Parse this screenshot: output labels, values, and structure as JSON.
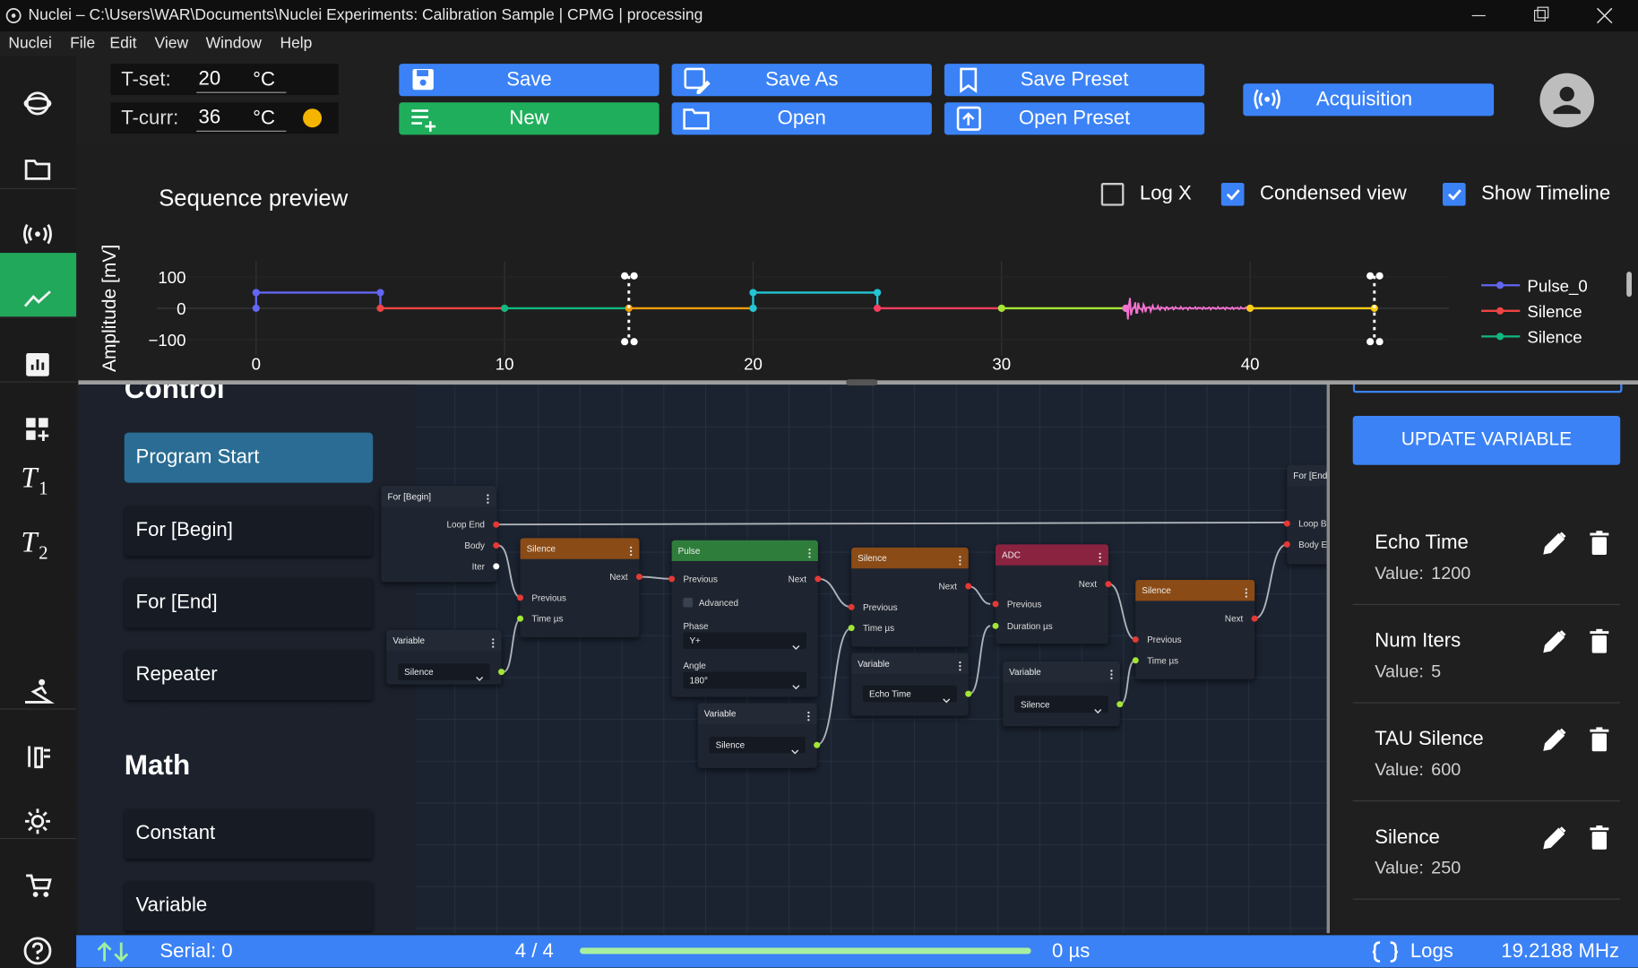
{
  "title_bar": {
    "title": "Nuclei – C:\\Users\\WAR\\Documents\\Nuclei Experiments: Calibration Sample | CPMG | processing"
  },
  "menu": [
    "Nuclei",
    "File",
    "Edit",
    "View",
    "Window",
    "Help"
  ],
  "sidebar_labels": [
    {
      "symbol": "T",
      "index": "1"
    },
    {
      "symbol": "T",
      "index": "2"
    }
  ],
  "temperature": {
    "set_label": "T-set:",
    "set_value": 20,
    "set_unit": "°C",
    "curr_label": "T-curr:",
    "curr_value": 36,
    "curr_unit": "°C"
  },
  "toolbar": [
    "Save",
    "Save As",
    "Save Preset",
    "New",
    "Open",
    "Open Preset",
    "Acquisition"
  ],
  "preview": {
    "title": "Sequence preview",
    "options": [
      {
        "label": "Log X",
        "checked": false
      },
      {
        "label": "Condensed view",
        "checked": true
      },
      {
        "label": "Show Timeline",
        "checked": true
      }
    ],
    "y_label": "Amplitude [mV]",
    "xlim": [
      -4,
      48
    ],
    "ylim": [
      -150,
      150
    ],
    "xticks": [
      0,
      10,
      20,
      30,
      40
    ],
    "yticks": [
      100,
      0,
      {
        "value": -100,
        "label": "−100"
      }
    ],
    "segments": [
      {
        "kind": "pulse",
        "start": 0,
        "end": 5,
        "amplitude": 50,
        "color": "#6366f1"
      },
      {
        "kind": "silence",
        "start": 5,
        "end": 10,
        "amplitude": 0,
        "color": "#ef4444"
      },
      {
        "kind": "silence",
        "start": 10,
        "end": 15,
        "amplitude": 0,
        "color": "#10b981"
      },
      {
        "kind": "silence",
        "start": 15,
        "end": 20,
        "amplitude": 0,
        "color": "#f59e0b"
      },
      {
        "kind": "pulse",
        "start": 20,
        "end": 25,
        "amplitude": 50,
        "color": "#22c5d5"
      },
      {
        "kind": "silence",
        "start": 25,
        "end": 30,
        "amplitude": 0,
        "color": "#f43f5e"
      },
      {
        "kind": "silence",
        "start": 30,
        "end": 35,
        "amplitude": 0,
        "color": "#a3e635"
      },
      {
        "kind": "acquisition",
        "start": 35,
        "end": 40,
        "amplitude": 0,
        "color": "#f472d0"
      },
      {
        "kind": "silence",
        "start": 40,
        "end": 45,
        "amplitude": 0,
        "color": "#facc15"
      }
    ],
    "loop_markers": [
      15,
      45
    ],
    "legend": [
      {
        "name": "Pulse_0",
        "color": "#6366f1"
      },
      {
        "name": "Silence",
        "color": "#ef4444"
      },
      {
        "name": "Silence",
        "color": "#10b981"
      }
    ]
  },
  "palette": {
    "sections": [
      {
        "title": "Control",
        "items": [
          "Program Start",
          "For [Begin]",
          "For [End]",
          "Repeater"
        ]
      },
      {
        "title": "Math",
        "items": [
          "Constant",
          "Variable"
        ]
      }
    ]
  },
  "nodes": [
    {
      "title": "For [Begin]",
      "fields": [
        "Loop End",
        "Body",
        "Iter"
      ]
    },
    {
      "title": "Silence",
      "fields": [
        "Next",
        "Previous",
        "Time µs"
      ]
    },
    {
      "title": "Variable",
      "fields": [
        "Silence"
      ]
    },
    {
      "title": "Pulse",
      "fields": [
        "Previous",
        "Next",
        "Advanced",
        "Phase",
        "Y+",
        "Angle",
        "180°"
      ]
    },
    {
      "title": "Variable",
      "fields": [
        "Silence"
      ]
    },
    {
      "title": "Silence",
      "fields": [
        "Next",
        "Previous",
        "Time µs"
      ]
    },
    {
      "title": "Variable",
      "fields": [
        "Echo Time"
      ]
    },
    {
      "title": "ADC",
      "fields": [
        "Next",
        "Previous",
        "Duration µs"
      ]
    },
    {
      "title": "Variable",
      "fields": [
        "Silence"
      ]
    },
    {
      "title": "Silence",
      "fields": [
        "Next",
        "Previous",
        "Time µs"
      ]
    },
    {
      "title": "For [End]",
      "fields": [
        "Loop Back",
        "Body End"
      ]
    }
  ],
  "variables": {
    "button": "UPDATE VARIABLE",
    "value_label": "Value:",
    "items": [
      {
        "name": "Echo Time",
        "value": 1200
      },
      {
        "name": "Num Iters",
        "value": 5
      },
      {
        "name": "TAU Silence",
        "value": 600
      },
      {
        "name": "Silence",
        "value": 250
      }
    ]
  },
  "status": {
    "serial": "Serial: 0",
    "progress": "4 / 4",
    "time": "0 µs",
    "logs": "Logs",
    "frequency": "19.2188 MHz"
  }
}
